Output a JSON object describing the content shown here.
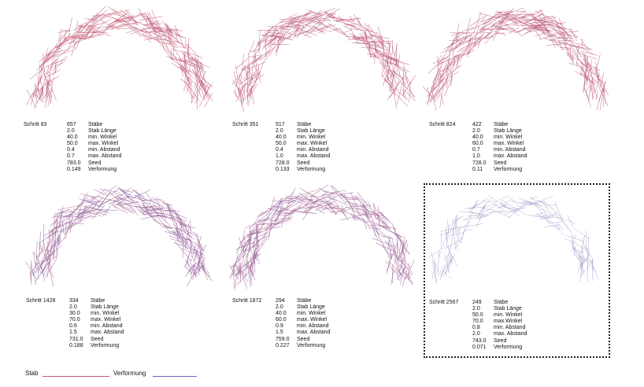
{
  "colors": {
    "stab": "#c8566f",
    "verformung": "#6e66b8"
  },
  "panels": [
    {
      "title": "Schritt 83",
      "values": [
        "657",
        "2.0",
        "40.0",
        "50.0",
        "0.4",
        "0.7",
        "783.0",
        "0.149"
      ],
      "mix": 0.05
    },
    {
      "title": "Schritt 351",
      "values": [
        "517",
        "2.0",
        "40.0",
        "50.0",
        "0.4",
        "1.0",
        "728.0",
        "0.133"
      ],
      "mix": 0.1
    },
    {
      "title": "Schritt 824",
      "values": [
        "422",
        "2.0",
        "40.0",
        "60.0",
        "0.7",
        "1.0",
        "728.0",
        "0.11"
      ],
      "mix": 0.15
    },
    {
      "title": "Schritt 1428",
      "values": [
        "334",
        "2.0",
        "30.0",
        "70.0",
        "0.6",
        "1.5",
        "731.0",
        "0.188"
      ],
      "mix": 0.55
    },
    {
      "title": "Schritt 1872",
      "values": [
        "294",
        "2.0",
        "40.0",
        "60.0",
        "0.9",
        "1.5",
        "759.0",
        "0.227"
      ],
      "mix": 0.5
    },
    {
      "title": "Schritt 2567",
      "values": [
        "249",
        "2.0",
        "50.0",
        "70.0",
        "0.8",
        "2.0",
        "743.0",
        "0.071"
      ],
      "mix": 0.85
    }
  ],
  "labels_default": [
    "Stäbe",
    "Stab Länge",
    "min. Winkel",
    "max. Winkel",
    "min. Abstand",
    "max. Abstand",
    "Seed",
    "Verformung"
  ],
  "labels_last": [
    "Stäbe",
    "Stab Länge",
    "min. Winkel",
    "max.Winkel",
    "min. Abstand",
    "max. Abstand",
    "Seed",
    "Verformung"
  ],
  "legend": {
    "stab": "Stab",
    "verformung": "Verformung"
  }
}
